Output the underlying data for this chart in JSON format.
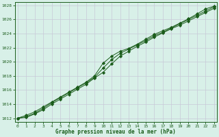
{
  "xlabel": "Graphe pression niveau de la mer (hPa)",
  "bg_color": "#d8f0e8",
  "grid_color": "#c8c8d8",
  "line_color": "#1a5c1a",
  "xlim": [
    0,
    23
  ],
  "ylim": [
    1011.5,
    1028.5
  ],
  "yticks": [
    1012,
    1014,
    1016,
    1018,
    1020,
    1022,
    1024,
    1026,
    1028
  ],
  "xticks": [
    0,
    1,
    2,
    3,
    4,
    5,
    6,
    7,
    8,
    9,
    10,
    11,
    12,
    13,
    14,
    15,
    16,
    17,
    18,
    19,
    20,
    21,
    22,
    23
  ],
  "hours": [
    0,
    1,
    2,
    3,
    4,
    5,
    6,
    7,
    8,
    9,
    10,
    11,
    12,
    13,
    14,
    15,
    16,
    17,
    18,
    19,
    20,
    21,
    22,
    23
  ],
  "pressure_line1": [
    1012.0,
    1012.4,
    1012.9,
    1013.6,
    1014.3,
    1015.0,
    1015.7,
    1016.4,
    1017.1,
    1018.0,
    1019.8,
    1020.8,
    1021.5,
    1021.9,
    1022.5,
    1023.2,
    1023.9,
    1024.4,
    1024.9,
    1025.5,
    1026.1,
    1026.8,
    1027.5,
    1027.9
  ],
  "pressure_line2": [
    1012.0,
    1012.2,
    1012.7,
    1013.4,
    1014.2,
    1014.9,
    1015.6,
    1016.3,
    1017.0,
    1017.8,
    1019.1,
    1020.3,
    1021.2,
    1021.8,
    1022.4,
    1023.0,
    1023.7,
    1024.2,
    1024.8,
    1025.4,
    1026.0,
    1026.6,
    1027.2,
    1027.8
  ],
  "pressure_line3": [
    1012.0,
    1012.1,
    1012.6,
    1013.2,
    1014.0,
    1014.7,
    1015.4,
    1016.1,
    1016.8,
    1017.7,
    1018.5,
    1019.7,
    1020.8,
    1021.5,
    1022.2,
    1022.8,
    1023.5,
    1024.1,
    1024.7,
    1025.2,
    1025.8,
    1026.4,
    1027.0,
    1027.6
  ]
}
